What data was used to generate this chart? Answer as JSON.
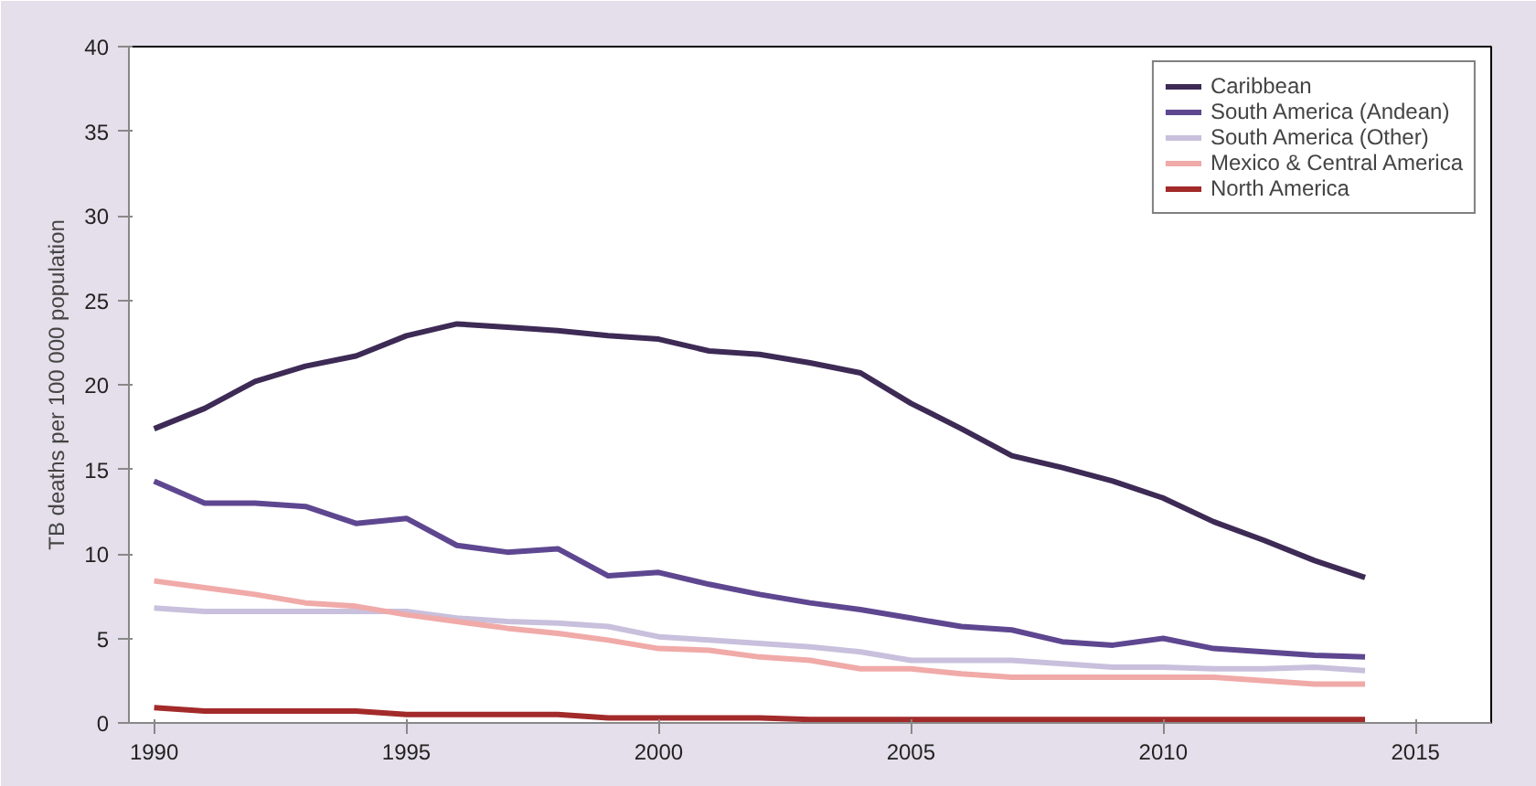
{
  "chart_data": {
    "type": "line",
    "ylabel": "TB deaths per 100 000 population",
    "x": [
      1990,
      1991,
      1992,
      1993,
      1994,
      1995,
      1996,
      1997,
      1998,
      1999,
      2000,
      2001,
      2002,
      2003,
      2004,
      2005,
      2006,
      2007,
      2008,
      2009,
      2010,
      2011,
      2012,
      2013,
      2014
    ],
    "series": [
      {
        "name": "Caribbean",
        "color": "#3d2a55",
        "values": [
          17.4,
          18.6,
          20.2,
          21.1,
          21.7,
          22.9,
          23.6,
          23.4,
          23.2,
          22.9,
          22.7,
          22.0,
          21.8,
          21.3,
          20.7,
          18.9,
          17.4,
          15.8,
          15.1,
          14.3,
          13.3,
          11.9,
          10.8,
          9.6,
          8.6
        ]
      },
      {
        "name": "South America (Andean)",
        "color": "#5e4790",
        "values": [
          14.3,
          13.0,
          13.0,
          12.8,
          11.8,
          12.1,
          10.5,
          10.1,
          10.3,
          8.7,
          8.9,
          8.2,
          7.6,
          7.1,
          6.7,
          6.2,
          5.7,
          5.5,
          4.8,
          4.6,
          5.0,
          4.4,
          4.2,
          4.0,
          3.9
        ]
      },
      {
        "name": "South America (Other)",
        "color": "#c8c0dc",
        "values": [
          6.8,
          6.6,
          6.6,
          6.6,
          6.6,
          6.6,
          6.2,
          6.0,
          5.9,
          5.7,
          5.1,
          4.9,
          4.7,
          4.5,
          4.2,
          3.7,
          3.7,
          3.7,
          3.5,
          3.3,
          3.3,
          3.2,
          3.2,
          3.3,
          3.1
        ]
      },
      {
        "name": "Mexico & Central America",
        "color": "#f0aaa8",
        "values": [
          8.4,
          8.0,
          7.6,
          7.1,
          6.9,
          6.4,
          6.0,
          5.6,
          5.3,
          4.9,
          4.4,
          4.3,
          3.9,
          3.7,
          3.2,
          3.2,
          2.9,
          2.7,
          2.7,
          2.7,
          2.7,
          2.7,
          2.5,
          2.3,
          2.3
        ]
      },
      {
        "name": "North America",
        "color": "#a32a2a",
        "values": [
          0.9,
          0.7,
          0.7,
          0.7,
          0.7,
          0.5,
          0.5,
          0.5,
          0.5,
          0.3,
          0.3,
          0.3,
          0.3,
          0.2,
          0.2,
          0.2,
          0.2,
          0.2,
          0.2,
          0.2,
          0.2,
          0.2,
          0.2,
          0.2,
          0.2
        ]
      }
    ],
    "xlim": [
      1989.5,
      2016.5
    ],
    "xticks": [
      1990,
      1995,
      2000,
      2005,
      2010,
      2015
    ],
    "ylim": [
      0,
      40
    ],
    "yticks": [
      0,
      5,
      10,
      15,
      20,
      25,
      30,
      35,
      40
    ],
    "grid": false,
    "legend": "top right",
    "marker": "none",
    "line_style": "solid"
  }
}
